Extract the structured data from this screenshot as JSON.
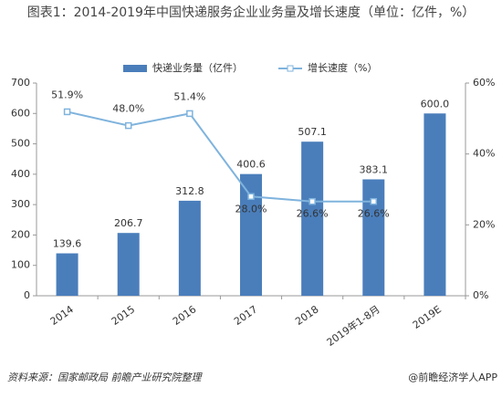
{
  "chart_data": {
    "type": "bar-line",
    "title": "图表1：2014-2019年中国快递服务企业业务量及增长速度（单位：亿件，%）",
    "categories": [
      "2014",
      "2015",
      "2016",
      "2017",
      "2018",
      "2019年1-8月",
      "2019E"
    ],
    "series": [
      {
        "name": "快递业务量（亿件）",
        "type": "bar",
        "color": "#4a7ebb",
        "values": [
          139.6,
          206.7,
          312.8,
          400.6,
          507.1,
          383.1,
          600.0
        ],
        "value_labels": [
          "139.6",
          "206.7",
          "312.8",
          "400.6",
          "507.1",
          "383.1",
          "600.0"
        ]
      },
      {
        "name": "增长速度（%）",
        "type": "line",
        "axis": "y2",
        "color": "#7fb3dd",
        "values": [
          51.9,
          48.0,
          51.4,
          28.0,
          26.6,
          26.6,
          null
        ],
        "value_labels": [
          "51.9%",
          "48.0%",
          "51.4%",
          "28.0%",
          "26.6%",
          "26.6%",
          null
        ]
      }
    ],
    "ylim": [
      0,
      700
    ],
    "yticks": [
      0,
      100,
      200,
      300,
      400,
      500,
      600,
      700
    ],
    "y2lim": [
      0,
      60
    ],
    "y2ticks": [
      {
        "value": 0,
        "label": "0%"
      },
      {
        "value": 20,
        "label": "20%"
      },
      {
        "value": 40,
        "label": "40%"
      },
      {
        "value": 60,
        "label": "60%"
      }
    ],
    "legend": "top",
    "source": "资料来源：国家邮政局 前瞻产业研究院整理",
    "watermark": "@前瞻经济学人APP"
  }
}
